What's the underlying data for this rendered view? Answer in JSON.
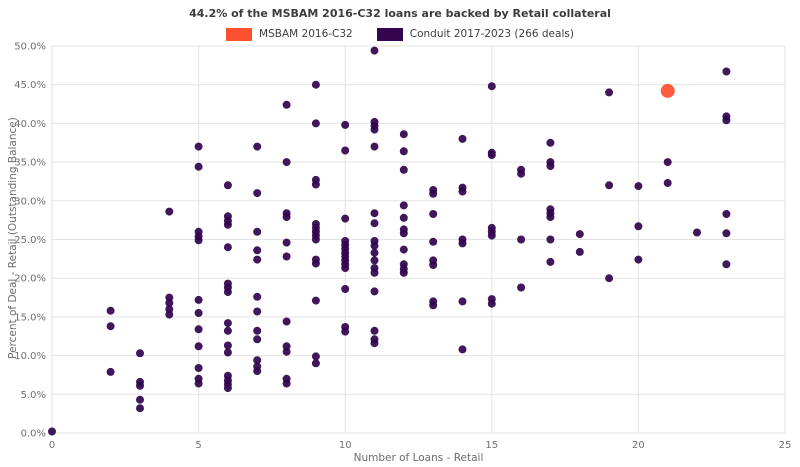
{
  "header": {
    "title": "44.2% of the MSBAM 2016-C32 loans are backed by Retail collateral"
  },
  "legend": {
    "items": [
      {
        "label": "MSBAM 2016-C32",
        "color": "#ff5030"
      },
      {
        "label": "Conduit 2017-2023 (266 deals)",
        "color": "#32054e"
      }
    ]
  },
  "chart_data": {
    "type": "scatter",
    "title": "44.2% of the MSBAM 2016-C32 loans are backed by Retail collateral",
    "xlabel": "Number of Loans - Retail",
    "ylabel": "Percent of Deal - Retail (Outstanding Balance)",
    "xlim": [
      0,
      25
    ],
    "ylim": [
      0,
      50
    ],
    "x_ticks": [
      0,
      5,
      10,
      15,
      20,
      25
    ],
    "x_tick_labels": [
      "0",
      "5",
      "10",
      "15",
      "20",
      "25"
    ],
    "y_ticks": [
      0,
      5,
      10,
      15,
      20,
      25,
      30,
      35,
      40,
      45,
      50
    ],
    "y_tick_labels": [
      "0.0%",
      "5.0%",
      "10.0%",
      "15.0%",
      "20.0%",
      "25.0%",
      "30.0%",
      "35.0%",
      "40.0%",
      "45.0%",
      "50.0%"
    ],
    "grid": true,
    "grid_color": "#e3e3e3",
    "legend_position": "top",
    "series": [
      {
        "name": "Conduit 2017-2023 (266 deals)",
        "color": "#32054e",
        "marker_radius": 4,
        "points": [
          [
            0,
            0.2
          ],
          [
            2,
            15.8
          ],
          [
            2,
            13.8
          ],
          [
            2,
            7.9
          ],
          [
            3,
            10.3
          ],
          [
            3,
            6.6
          ],
          [
            3,
            6.1
          ],
          [
            3,
            4.3
          ],
          [
            3,
            3.2
          ],
          [
            4,
            28.6
          ],
          [
            4,
            17.5
          ],
          [
            4,
            16.8
          ],
          [
            4,
            16.0
          ],
          [
            4,
            15.3
          ],
          [
            5,
            37.0
          ],
          [
            5,
            34.4
          ],
          [
            5,
            26.0
          ],
          [
            5,
            25.4
          ],
          [
            5,
            24.9
          ],
          [
            5,
            17.2
          ],
          [
            5,
            15.5
          ],
          [
            5,
            13.4
          ],
          [
            5,
            11.2
          ],
          [
            5,
            8.4
          ],
          [
            5,
            7.0
          ],
          [
            5,
            6.4
          ],
          [
            6,
            32.0
          ],
          [
            6,
            28.0
          ],
          [
            6,
            27.4
          ],
          [
            6,
            26.9
          ],
          [
            6,
            24.0
          ],
          [
            6,
            19.3
          ],
          [
            6,
            18.8
          ],
          [
            6,
            18.2
          ],
          [
            6,
            14.2
          ],
          [
            6,
            13.2
          ],
          [
            6,
            11.3
          ],
          [
            6,
            10.4
          ],
          [
            6,
            7.4
          ],
          [
            6,
            6.8
          ],
          [
            6,
            6.3
          ],
          [
            6,
            5.8
          ],
          [
            7,
            37.0
          ],
          [
            7,
            31.0
          ],
          [
            7,
            26.0
          ],
          [
            7,
            23.6
          ],
          [
            7,
            22.4
          ],
          [
            7,
            17.6
          ],
          [
            7,
            15.7
          ],
          [
            7,
            13.2
          ],
          [
            7,
            12.1
          ],
          [
            7,
            9.4
          ],
          [
            7,
            8.6
          ],
          [
            7,
            8.0
          ],
          [
            8,
            42.4
          ],
          [
            8,
            35.0
          ],
          [
            8,
            28.4
          ],
          [
            8,
            27.9
          ],
          [
            8,
            24.6
          ],
          [
            8,
            22.8
          ],
          [
            8,
            14.4
          ],
          [
            8,
            11.2
          ],
          [
            8,
            10.5
          ],
          [
            8,
            7.0
          ],
          [
            8,
            6.4
          ],
          [
            9,
            45.0
          ],
          [
            9,
            40.0
          ],
          [
            9,
            32.7
          ],
          [
            9,
            32.1
          ],
          [
            9,
            27.0
          ],
          [
            9,
            26.5
          ],
          [
            9,
            26.0
          ],
          [
            9,
            25.5
          ],
          [
            9,
            25.0
          ],
          [
            9,
            22.4
          ],
          [
            9,
            21.9
          ],
          [
            9,
            17.1
          ],
          [
            9,
            9.9
          ],
          [
            9,
            9.0
          ],
          [
            10,
            39.8
          ],
          [
            10,
            36.5
          ],
          [
            10,
            27.7
          ],
          [
            10,
            24.8
          ],
          [
            10,
            24.3
          ],
          [
            10,
            23.8
          ],
          [
            10,
            23.3
          ],
          [
            10,
            22.8
          ],
          [
            10,
            22.3
          ],
          [
            10,
            21.8
          ],
          [
            10,
            21.3
          ],
          [
            10,
            18.6
          ],
          [
            10,
            13.7
          ],
          [
            10,
            13.1
          ],
          [
            11,
            49.4
          ],
          [
            11,
            40.2
          ],
          [
            11,
            39.7
          ],
          [
            11,
            39.2
          ],
          [
            11,
            37.0
          ],
          [
            11,
            28.4
          ],
          [
            11,
            27.1
          ],
          [
            11,
            24.8
          ],
          [
            11,
            24.2
          ],
          [
            11,
            23.3
          ],
          [
            11,
            22.3
          ],
          [
            11,
            21.3
          ],
          [
            11,
            20.7
          ],
          [
            11,
            18.3
          ],
          [
            11,
            13.2
          ],
          [
            11,
            12.1
          ],
          [
            11,
            11.6
          ],
          [
            12,
            38.6
          ],
          [
            12,
            36.4
          ],
          [
            12,
            34.0
          ],
          [
            12,
            29.4
          ],
          [
            12,
            27.8
          ],
          [
            12,
            26.3
          ],
          [
            12,
            25.8
          ],
          [
            12,
            23.7
          ],
          [
            12,
            21.8
          ],
          [
            12,
            21.2
          ],
          [
            12,
            20.7
          ],
          [
            13,
            31.4
          ],
          [
            13,
            30.9
          ],
          [
            13,
            28.3
          ],
          [
            13,
            24.7
          ],
          [
            13,
            22.3
          ],
          [
            13,
            21.7
          ],
          [
            13,
            17.0
          ],
          [
            13,
            16.5
          ],
          [
            14,
            38.0
          ],
          [
            14,
            31.7
          ],
          [
            14,
            31.2
          ],
          [
            14,
            25.0
          ],
          [
            14,
            24.5
          ],
          [
            14,
            17.0
          ],
          [
            14,
            10.8
          ],
          [
            15,
            44.8
          ],
          [
            15,
            36.2
          ],
          [
            15,
            35.9
          ],
          [
            15,
            26.5
          ],
          [
            15,
            26.0
          ],
          [
            15,
            25.5
          ],
          [
            15,
            17.3
          ],
          [
            15,
            16.7
          ],
          [
            16,
            34.0
          ],
          [
            16,
            33.5
          ],
          [
            16,
            25.0
          ],
          [
            16,
            18.8
          ],
          [
            17,
            37.5
          ],
          [
            17,
            35.0
          ],
          [
            17,
            34.5
          ],
          [
            17,
            28.9
          ],
          [
            17,
            28.4
          ],
          [
            17,
            27.9
          ],
          [
            17,
            25.0
          ],
          [
            17,
            22.1
          ],
          [
            18,
            25.7
          ],
          [
            18,
            23.4
          ],
          [
            19,
            44.0
          ],
          [
            19,
            32.0
          ],
          [
            19,
            20.0
          ],
          [
            20,
            31.9
          ],
          [
            20,
            26.7
          ],
          [
            20,
            22.4
          ],
          [
            21,
            35.0
          ],
          [
            21,
            32.3
          ],
          [
            22,
            25.9
          ],
          [
            23,
            46.7
          ],
          [
            23,
            40.9
          ],
          [
            23,
            40.4
          ],
          [
            23,
            28.3
          ],
          [
            23,
            25.8
          ],
          [
            23,
            21.8
          ]
        ]
      },
      {
        "name": "MSBAM 2016-C32",
        "color": "#ff5030",
        "marker_radius": 7,
        "points": [
          [
            21,
            44.2
          ]
        ]
      }
    ]
  }
}
